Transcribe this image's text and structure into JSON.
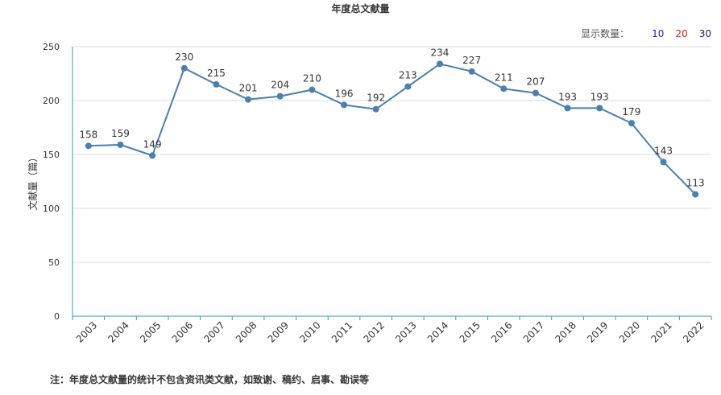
{
  "title": "年度总文献量",
  "display_count": {
    "label": "显示数量：",
    "options": [
      {
        "label": "10",
        "color": "#1a1acc"
      },
      {
        "label": "20",
        "color": "#d42020"
      },
      {
        "label": "30",
        "color": "#1a1a80"
      }
    ]
  },
  "footnote": "注：年度总文献量的统计不包含资讯类文献，如致谢、稿约、启事、勘误等",
  "colors": {
    "line": "#4a7fae",
    "axis": "#3a9aa8",
    "grid": "#dddddd",
    "text": "#333333"
  },
  "chart_data": {
    "type": "line",
    "title": "年度总文献量",
    "ylabel": "文献量（篇）",
    "xlabel": "",
    "ylim": [
      0,
      250
    ],
    "yticks": [
      0,
      50,
      100,
      150,
      200,
      250
    ],
    "grid": true,
    "categories": [
      "2003",
      "2004",
      "2005",
      "2006",
      "2007",
      "2008",
      "2009",
      "2010",
      "2011",
      "2012",
      "2013",
      "2014",
      "2015",
      "2016",
      "2017",
      "2018",
      "2019",
      "2020",
      "2021",
      "2022"
    ],
    "values": [
      158,
      159,
      149,
      230,
      215,
      201,
      204,
      210,
      196,
      192,
      213,
      234,
      227,
      211,
      207,
      193,
      193,
      179,
      143,
      113
    ]
  }
}
